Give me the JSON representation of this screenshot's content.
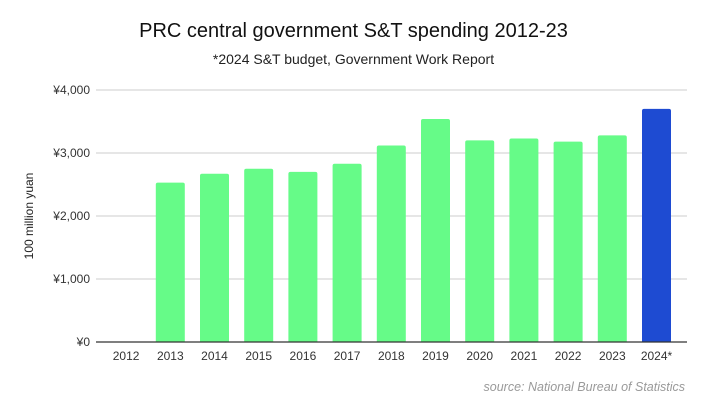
{
  "chart_data": {
    "type": "bar",
    "title": "PRC central government S&T spending 2012-23",
    "subtitle": "*2024 S&T budget, Government Work Report",
    "xlabel": "",
    "ylabel": "100 million yuan",
    "source": "source: National Bureau of Statistics",
    "categories": [
      "2012",
      "2013",
      "2014",
      "2015",
      "2016",
      "2017",
      "2018",
      "2019",
      "2020",
      "2021",
      "2022",
      "2023",
      "2024*"
    ],
    "values": [
      null,
      2530,
      2670,
      2750,
      2700,
      2830,
      3120,
      3540,
      3200,
      3230,
      3180,
      3280,
      3700
    ],
    "highlight": [
      "2024*"
    ],
    "ylim": [
      0,
      4000
    ],
    "yticks": [
      0,
      1000,
      2000,
      3000,
      4000
    ],
    "ytick_labels": [
      "¥0",
      "¥1,000",
      "¥2,000",
      "¥3,000",
      "¥4,000"
    ],
    "grid": true,
    "legend": "none",
    "colors": {
      "bar": "#66fb88",
      "highlight": "#1e4bd2",
      "grid": "#cccccc",
      "axis": "#333333"
    }
  }
}
